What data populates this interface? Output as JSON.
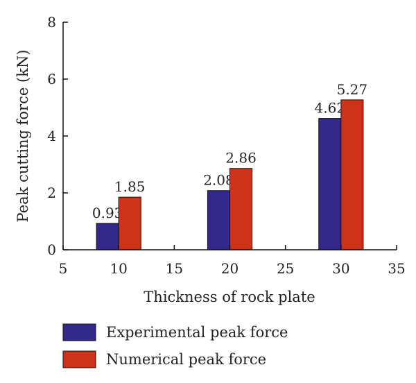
{
  "chart_data": {
    "type": "bar",
    "x": [
      10,
      20,
      30
    ],
    "series": [
      {
        "name": "Experimental peak force",
        "values": [
          0.93,
          2.08,
          4.62
        ],
        "color": "#33298a",
        "labels": [
          "0.93",
          "2.08",
          "4.62"
        ]
      },
      {
        "name": "Numerical peak force",
        "values": [
          1.85,
          2.86,
          5.27
        ],
        "color": "#cc3318",
        "labels": [
          "1.85",
          "2.86",
          "5.27"
        ]
      }
    ],
    "xlabel": "Thickness of rock plate",
    "ylabel": "Peak cutting force (kN)",
    "xlim": [
      5,
      35
    ],
    "ylim": [
      0,
      8
    ],
    "xticks": [
      5,
      10,
      15,
      20,
      25,
      30,
      35
    ],
    "yticks": [
      0,
      2,
      4,
      6,
      8
    ],
    "bar_width": 2,
    "grid": false,
    "legend_position": "bottom"
  }
}
